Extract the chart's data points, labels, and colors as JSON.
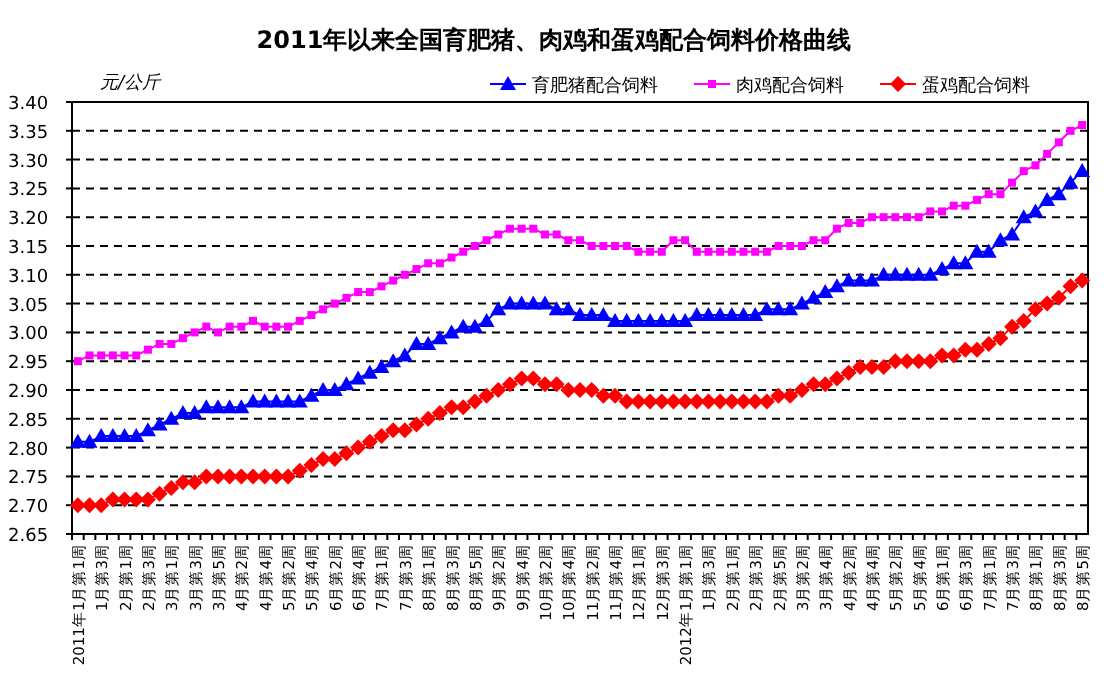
{
  "chart_data": {
    "type": "line",
    "title": "2011年以来全国育肥猪、肉鸡和蛋鸡配合饲料价格曲线",
    "ylabel": "元/公斤",
    "categories": [
      "2011年1月第1周",
      null,
      "1月第3周",
      null,
      "2月第1周",
      null,
      "2月第3周",
      null,
      "3月第1周",
      null,
      "3月第3周",
      null,
      "3月第5周",
      null,
      "4月第2周",
      null,
      "4月第4周",
      null,
      "5月第2周",
      null,
      "5月第4周",
      null,
      "6月第2周",
      null,
      "6月第4周",
      null,
      "7月第1周",
      null,
      "7月第3周",
      null,
      "8月第1周",
      null,
      "8月第3周",
      null,
      "8月第5周",
      null,
      "9月第2周",
      null,
      "9月第4周",
      null,
      "10月第2周",
      null,
      "10月第4周",
      null,
      "11月第2周",
      null,
      "11月第4周",
      null,
      "12月第1周",
      null,
      "12月第3周",
      null,
      "2012年1月第1周",
      null,
      "1月第3周",
      null,
      "2月第1周",
      null,
      "2月第3周",
      null,
      "2月第5周",
      null,
      "3月第2周",
      null,
      "3月第4周",
      null,
      "4月第2周",
      null,
      "4月第4周",
      null,
      "5月第2周",
      null,
      "5月第4周",
      null,
      "6月第1周",
      null,
      "6月第3周",
      null,
      "7月第1周",
      null,
      "7月第3周",
      null,
      "8月第1周",
      null,
      "8月第3周",
      null,
      "8月第5周"
    ],
    "series": [
      {
        "name": "育肥猪配合饲料",
        "color": "#0000ff",
        "marker": "triangle",
        "values": [
          2.81,
          2.81,
          2.82,
          2.82,
          2.82,
          2.82,
          2.83,
          2.84,
          2.85,
          2.86,
          2.86,
          2.87,
          2.87,
          2.87,
          2.87,
          2.88,
          2.88,
          2.88,
          2.88,
          2.88,
          2.89,
          2.9,
          2.9,
          2.91,
          2.92,
          2.93,
          2.94,
          2.95,
          2.96,
          2.98,
          2.98,
          2.99,
          3.0,
          3.01,
          3.01,
          3.02,
          3.04,
          3.05,
          3.05,
          3.05,
          3.05,
          3.04,
          3.04,
          3.03,
          3.03,
          3.03,
          3.02,
          3.02,
          3.02,
          3.02,
          3.02,
          3.02,
          3.02,
          3.03,
          3.03,
          3.03,
          3.03,
          3.03,
          3.03,
          3.04,
          3.04,
          3.04,
          3.05,
          3.06,
          3.07,
          3.08,
          3.09,
          3.09,
          3.09,
          3.1,
          3.1,
          3.1,
          3.1,
          3.1,
          3.11,
          3.12,
          3.12,
          3.14,
          3.14,
          3.16,
          3.17,
          3.2,
          3.21,
          3.23,
          3.24,
          3.26,
          3.28
        ]
      },
      {
        "name": "肉鸡配合饲料",
        "color": "#ff00ff",
        "marker": "square",
        "values": [
          2.95,
          2.96,
          2.96,
          2.96,
          2.96,
          2.96,
          2.97,
          2.98,
          2.98,
          2.99,
          3.0,
          3.01,
          3.0,
          3.01,
          3.01,
          3.02,
          3.01,
          3.01,
          3.01,
          3.02,
          3.03,
          3.04,
          3.05,
          3.06,
          3.07,
          3.07,
          3.08,
          3.09,
          3.1,
          3.11,
          3.12,
          3.12,
          3.13,
          3.14,
          3.15,
          3.16,
          3.17,
          3.18,
          3.18,
          3.18,
          3.17,
          3.17,
          3.16,
          3.16,
          3.15,
          3.15,
          3.15,
          3.15,
          3.14,
          3.14,
          3.14,
          3.16,
          3.16,
          3.14,
          3.14,
          3.14,
          3.14,
          3.14,
          3.14,
          3.14,
          3.15,
          3.15,
          3.15,
          3.16,
          3.16,
          3.18,
          3.19,
          3.19,
          3.2,
          3.2,
          3.2,
          3.2,
          3.2,
          3.21,
          3.21,
          3.22,
          3.22,
          3.23,
          3.24,
          3.24,
          3.26,
          3.28,
          3.29,
          3.31,
          3.33,
          3.35,
          3.36
        ]
      },
      {
        "name": "蛋鸡配合饲料",
        "color": "#ff0000",
        "marker": "diamond",
        "values": [
          2.7,
          2.7,
          2.7,
          2.71,
          2.71,
          2.71,
          2.71,
          2.72,
          2.73,
          2.74,
          2.74,
          2.75,
          2.75,
          2.75,
          2.75,
          2.75,
          2.75,
          2.75,
          2.75,
          2.76,
          2.77,
          2.78,
          2.78,
          2.79,
          2.8,
          2.81,
          2.82,
          2.83,
          2.83,
          2.84,
          2.85,
          2.86,
          2.87,
          2.87,
          2.88,
          2.89,
          2.9,
          2.91,
          2.92,
          2.92,
          2.91,
          2.91,
          2.9,
          2.9,
          2.9,
          2.89,
          2.89,
          2.88,
          2.88,
          2.88,
          2.88,
          2.88,
          2.88,
          2.88,
          2.88,
          2.88,
          2.88,
          2.88,
          2.88,
          2.88,
          2.89,
          2.89,
          2.9,
          2.91,
          2.91,
          2.92,
          2.93,
          2.94,
          2.94,
          2.94,
          2.95,
          2.95,
          2.95,
          2.95,
          2.96,
          2.96,
          2.97,
          2.97,
          2.98,
          2.99,
          3.01,
          3.02,
          3.04,
          3.05,
          3.06,
          3.08,
          3.09
        ]
      }
    ],
    "ylim": [
      2.65,
      3.4
    ],
    "yticks": [
      {
        "value": 2.65,
        "label": "2.65"
      },
      {
        "value": 2.7,
        "label": "2.70"
      },
      {
        "value": 2.75,
        "label": "2.75"
      },
      {
        "value": 2.8,
        "label": "2.80"
      },
      {
        "value": 2.85,
        "label": "2.85"
      },
      {
        "value": 2.9,
        "label": "2.90"
      },
      {
        "value": 2.95,
        "label": "2.95"
      },
      {
        "value": 3.0,
        "label": "3.00"
      },
      {
        "value": 3.05,
        "label": "3.05"
      },
      {
        "value": 3.1,
        "label": "3.10"
      },
      {
        "value": 3.15,
        "label": "3.15"
      },
      {
        "value": 3.2,
        "label": "3.20"
      },
      {
        "value": 3.25,
        "label": "3.25"
      },
      {
        "value": 3.3,
        "label": "3.30"
      },
      {
        "value": 3.35,
        "label": "3.35"
      },
      {
        "value": 3.4,
        "label": "3.40"
      }
    ],
    "grid": "y",
    "legend": "top right"
  }
}
